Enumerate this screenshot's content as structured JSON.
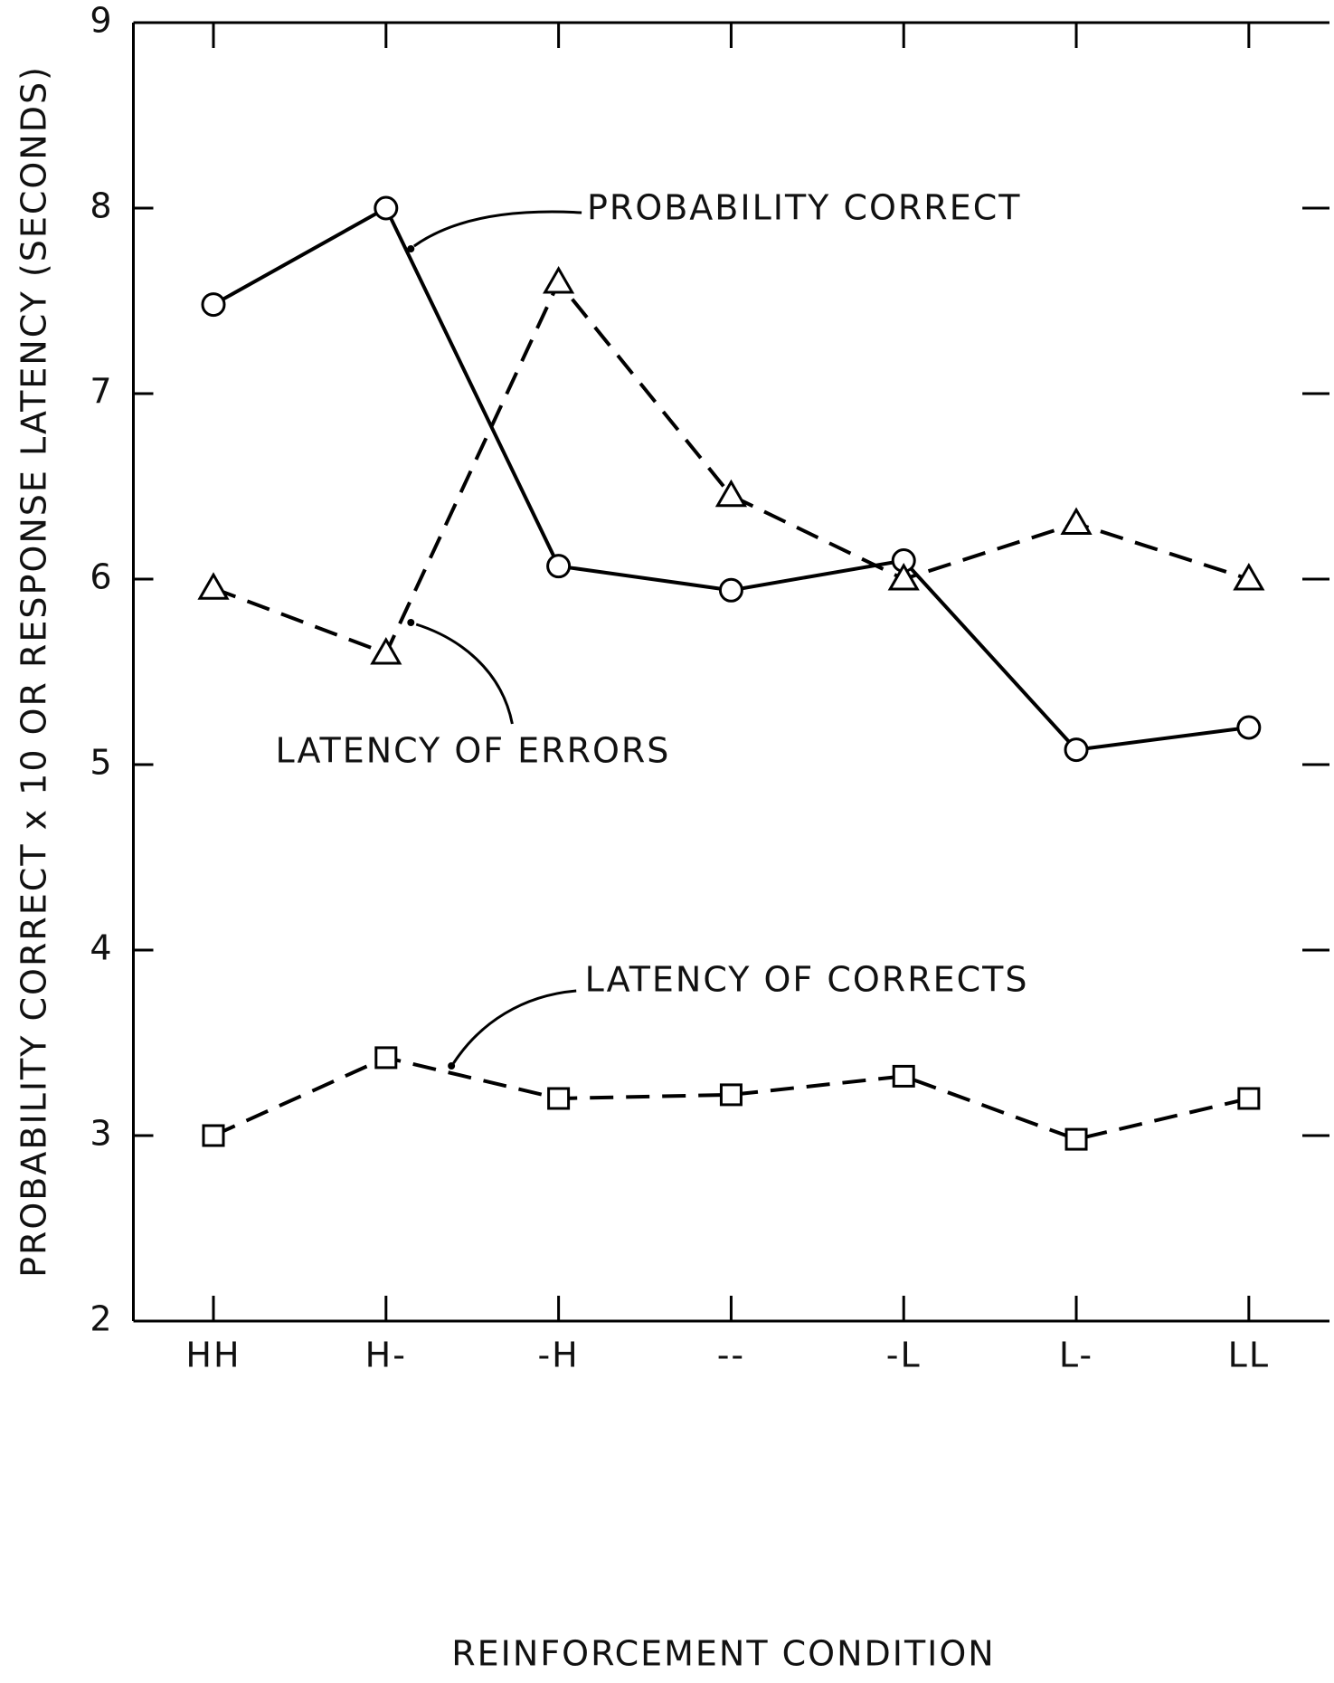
{
  "chart_data": {
    "type": "line",
    "x_label": "REINFORCEMENT CONDITION",
    "y_label": "PROBABILITY CORRECT x 10 OR RESPONSE LATENCY (SECONDS)",
    "categories": [
      "HH",
      "H-",
      "-H",
      "--",
      "-L",
      "L-",
      "LL"
    ],
    "series": [
      {
        "name": "PROBABILITY CORRECT",
        "color": "#000000",
        "marker": "circle",
        "line_style": "solid",
        "values": [
          7.48,
          8.0,
          6.07,
          5.94,
          6.1,
          5.08,
          5.2
        ]
      },
      {
        "name": "LATENCY OF ERRORS",
        "color": "#000000",
        "marker": "triangle",
        "line_style": "dashed",
        "values": [
          5.95,
          5.6,
          7.6,
          6.45,
          6.0,
          6.3,
          6.0
        ]
      },
      {
        "name": "LATENCY OF CORRECTS",
        "color": "#000000",
        "marker": "square",
        "line_style": "dashed",
        "values": [
          3.0,
          3.42,
          3.2,
          3.22,
          3.32,
          2.98,
          3.2
        ]
      }
    ],
    "ylim": [
      2,
      9
    ],
    "yticks": [
      2,
      3,
      4,
      5,
      6,
      7,
      8,
      9
    ],
    "grid": false
  }
}
